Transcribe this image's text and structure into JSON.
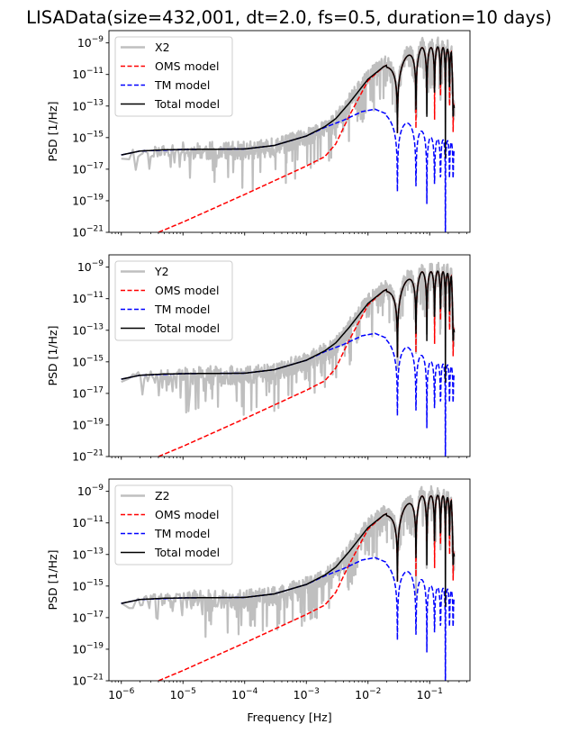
{
  "figure": {
    "title": "LISAData(size=432,001, dt=2.0, fs=0.5, duration=10 days)"
  },
  "chart_data": [
    {
      "type": "line",
      "panel": "X2",
      "xscale": "log",
      "yscale": "log",
      "xlabel": "",
      "ylabel": "PSD [1/Hz]",
      "xlim": [
        6.3e-07,
        0.45
      ],
      "ylim": [
        1e-21,
        6e-09
      ],
      "xticks": [
        1e-06,
        1e-05,
        0.0001,
        0.001,
        0.01,
        0.1
      ],
      "xtick_labels": [
        "10^-6",
        "10^-5",
        "10^-4",
        "10^-3",
        "10^-2",
        "10^-1"
      ],
      "show_xtick_labels": false,
      "yticks": [
        1e-09,
        1e-11,
        1e-13,
        1e-15,
        1e-17,
        1e-19,
        1e-21
      ],
      "ytick_labels": [
        [
          "10",
          "−9"
        ],
        [
          "10",
          "−11"
        ],
        [
          "10",
          "−13"
        ],
        [
          "10",
          "−15"
        ],
        [
          "10",
          "−17"
        ],
        [
          "10",
          "−19"
        ],
        [
          "10",
          "−21"
        ]
      ],
      "legend": {
        "placement": "top-left",
        "entries": [
          "X2",
          "OMS model",
          "TM model",
          "Total model"
        ]
      },
      "seed": 11
    },
    {
      "type": "line",
      "panel": "Y2",
      "xscale": "log",
      "yscale": "log",
      "xlabel": "",
      "ylabel": "PSD [1/Hz]",
      "xlim": [
        6.3e-07,
        0.45
      ],
      "ylim": [
        1e-21,
        6e-09
      ],
      "xticks": [
        1e-06,
        1e-05,
        0.0001,
        0.001,
        0.01,
        0.1
      ],
      "xtick_labels": [
        "10^-6",
        "10^-5",
        "10^-4",
        "10^-3",
        "10^-2",
        "10^-1"
      ],
      "show_xtick_labels": false,
      "yticks": [
        1e-09,
        1e-11,
        1e-13,
        1e-15,
        1e-17,
        1e-19,
        1e-21
      ],
      "ytick_labels": [
        [
          "10",
          "−9"
        ],
        [
          "10",
          "−11"
        ],
        [
          "10",
          "−13"
        ],
        [
          "10",
          "−15"
        ],
        [
          "10",
          "−17"
        ],
        [
          "10",
          "−19"
        ],
        [
          "10",
          "−21"
        ]
      ],
      "legend": {
        "placement": "top-left",
        "entries": [
          "Y2",
          "OMS model",
          "TM model",
          "Total model"
        ]
      },
      "seed": 23
    },
    {
      "type": "line",
      "panel": "Z2",
      "xscale": "log",
      "yscale": "log",
      "xlabel": "Frequency [Hz]",
      "ylabel": "PSD [1/Hz]",
      "xlim": [
        6.3e-07,
        0.45
      ],
      "ylim": [
        1e-21,
        6e-09
      ],
      "xticks": [
        1e-06,
        1e-05,
        0.0001,
        0.001,
        0.01,
        0.1
      ],
      "xtick_labels": [
        [
          "10",
          "−6"
        ],
        [
          "10",
          "−5"
        ],
        [
          "10",
          "−4"
        ],
        [
          "10",
          "−3"
        ],
        [
          "10",
          "−2"
        ],
        [
          "10",
          "−1"
        ]
      ],
      "show_xtick_labels": true,
      "yticks": [
        1e-09,
        1e-11,
        1e-13,
        1e-15,
        1e-17,
        1e-19,
        1e-21
      ],
      "ytick_labels": [
        [
          "10",
          "−9"
        ],
        [
          "10",
          "−11"
        ],
        [
          "10",
          "−13"
        ],
        [
          "10",
          "−15"
        ],
        [
          "10",
          "−17"
        ],
        [
          "10",
          "−19"
        ],
        [
          "10",
          "−21"
        ]
      ],
      "legend": {
        "placement": "top-left",
        "entries": [
          "Z2",
          "OMS model",
          "TM model",
          "Total model"
        ]
      },
      "seed": 37
    }
  ],
  "model": {
    "null_spacing_hz": 0.03,
    "f_max_hz": 0.25,
    "total_model_points": [
      [
        1e-06,
        -16.1
      ],
      [
        2e-06,
        -15.85
      ],
      [
        5e-06,
        -15.77
      ],
      [
        1e-05,
        -15.75
      ],
      [
        0.0001,
        -15.72
      ],
      [
        0.0003,
        -15.5
      ],
      [
        0.001,
        -14.9
      ],
      [
        0.002,
        -14.3
      ],
      [
        0.003,
        -13.8
      ],
      [
        0.005,
        -12.8
      ],
      [
        0.01,
        -11.3
      ],
      [
        0.018,
        -10.5
      ],
      [
        0.045,
        -9.8
      ],
      [
        0.075,
        -9.3
      ],
      [
        0.105,
        -9.3
      ],
      [
        0.135,
        -9.25
      ],
      [
        0.165,
        -9.3
      ],
      [
        0.195,
        -9.4
      ],
      [
        0.225,
        -9.6
      ],
      [
        0.25,
        -13.0
      ]
    ],
    "oms_model_points": [
      [
        4e-06,
        -21.0
      ],
      [
        1e-05,
        -20.35
      ],
      [
        0.0001,
        -18.6
      ],
      [
        0.001,
        -16.8
      ],
      [
        0.002,
        -16.2
      ],
      [
        0.003,
        -15.4
      ],
      [
        0.005,
        -13.6
      ],
      [
        0.01,
        -11.4
      ],
      [
        0.018,
        -10.5
      ],
      [
        0.045,
        -9.8
      ],
      [
        0.075,
        -9.3
      ],
      [
        0.105,
        -9.3
      ],
      [
        0.135,
        -9.25
      ],
      [
        0.165,
        -9.3
      ],
      [
        0.195,
        -9.4
      ],
      [
        0.225,
        -9.6
      ],
      [
        0.25,
        -13.0
      ]
    ],
    "tm_model_points": [
      [
        1e-06,
        -16.1
      ],
      [
        2e-06,
        -15.85
      ],
      [
        1e-05,
        -15.75
      ],
      [
        0.0001,
        -15.72
      ],
      [
        0.0003,
        -15.5
      ],
      [
        0.001,
        -14.9
      ],
      [
        0.002,
        -14.35
      ],
      [
        0.004,
        -13.9
      ],
      [
        0.008,
        -13.35
      ],
      [
        0.013,
        -13.2
      ],
      [
        0.02,
        -13.5
      ],
      [
        0.045,
        -14.1
      ],
      [
        0.075,
        -14.6
      ],
      [
        0.105,
        -15.0
      ],
      [
        0.135,
        -15.1
      ],
      [
        0.165,
        -15.15
      ],
      [
        0.195,
        -15.2
      ],
      [
        0.225,
        -15.3
      ],
      [
        0.25,
        -15.6
      ]
    ],
    "data_scatter_decades": 1.2
  },
  "colors": {
    "data": "#bfbfbf",
    "oms": "#ff0000",
    "tm": "#0000ff",
    "total": "#000000",
    "legend_border": "#cccccc"
  }
}
